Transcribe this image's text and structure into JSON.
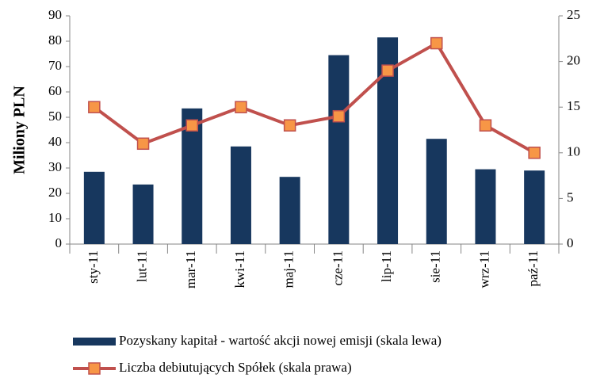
{
  "chart_data": {
    "type": "bar",
    "y_label": "Miliony PLN",
    "categories": [
      "sty-11",
      "lut-11",
      "mar-11",
      "kwi-11",
      "maj-11",
      "cze-11",
      "lip-11",
      "sie-11",
      "wrz-11",
      "paź-11"
    ],
    "series": [
      {
        "name": "Pozyskany kapitał - wartość akcji nowej emisji (skala lewa)",
        "type": "bar",
        "color": "#17375e",
        "values": [
          28.5,
          23.5,
          53.5,
          38.5,
          26.5,
          74.5,
          81.5,
          41.5,
          29.5,
          29
        ]
      },
      {
        "name": "Liczba debiutujących Spółek (skala prawa)",
        "type": "line",
        "axis": "y2",
        "color": "#c0504d",
        "marker_color": "#f79646",
        "values": [
          15,
          11,
          13,
          15,
          13,
          14,
          19,
          22,
          13,
          10
        ]
      }
    ],
    "ylim": [
      0,
      90
    ],
    "yticks": [
      0,
      10,
      20,
      30,
      40,
      50,
      60,
      70,
      80,
      90
    ],
    "y2lim": [
      0,
      25
    ],
    "y2ticks": [
      0,
      5,
      10,
      15,
      20,
      25
    ],
    "grid": false,
    "legend": "bottom"
  }
}
